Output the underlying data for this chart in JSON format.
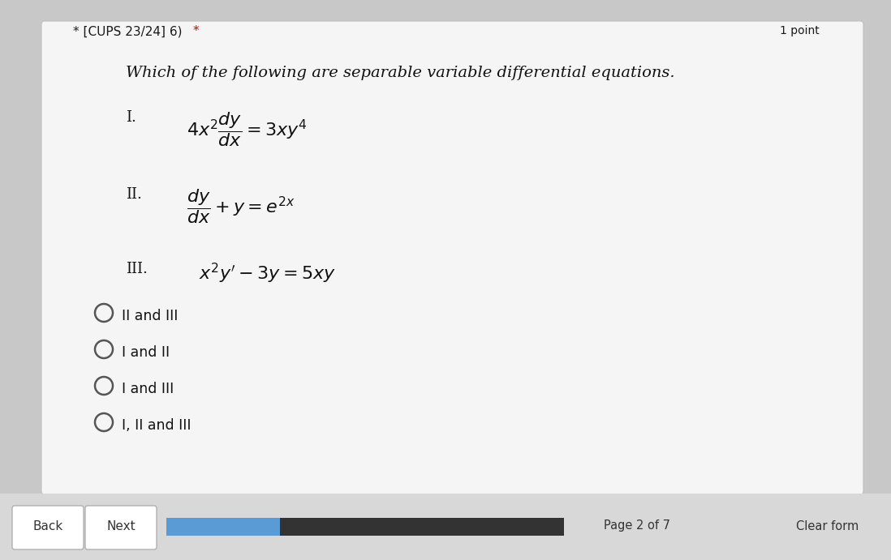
{
  "bg_outer": "#c8c8c8",
  "bg_card": "#f2f2f2",
  "header_text_black": "* [CUPS 23/24] 6) ",
  "header_star_red": "*",
  "points_text": "1 point",
  "question_text": "Which of the following are separable variable differential equations.",
  "eq_I_label": "I.",
  "eq_II_label": "II.",
  "eq_III_label": "III.",
  "eq_I": "$4x^2\\dfrac{dy}{dx}=3xy^4$",
  "eq_II": "$\\dfrac{dy}{dx}+y=e^{2x}$",
  "eq_III": "$x^2y'-3y=5xy$",
  "options": [
    "II and III",
    "I and II",
    "I and III",
    "I, II and III"
  ],
  "back_text": "Back",
  "next_text": "Next",
  "page_text": "Page 2 of 7",
  "clear_text": "Clear form",
  "progress_bar_color": "#5b9bd5",
  "progress_bar_bg": "#333333",
  "text_color": "#1a1a1a",
  "header_color": "#1a1a1a",
  "card_text_color": "#111111",
  "red_star_color": "#cc0000"
}
